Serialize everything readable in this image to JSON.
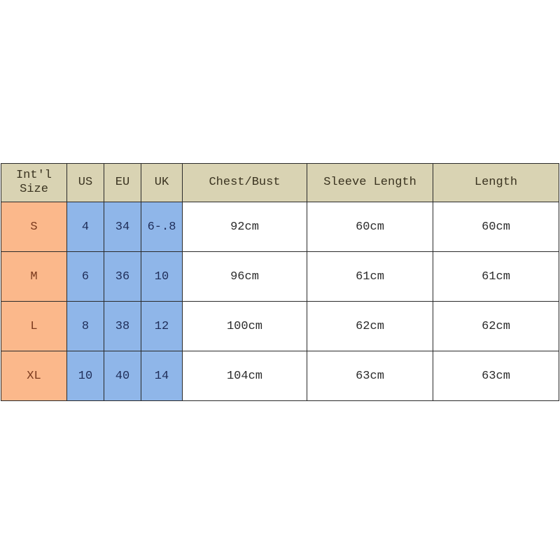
{
  "table": {
    "headers": [
      "Int'l Size",
      "US",
      "EU",
      "UK",
      "Chest/Bust",
      "Sleeve Length",
      "Length"
    ],
    "rows": [
      [
        "S",
        "4",
        "34",
        "6-.8",
        "92cm",
        "60cm",
        "60cm"
      ],
      [
        "M",
        "6",
        "36",
        "10",
        "96cm",
        "61cm",
        "61cm"
      ],
      [
        "L",
        "8",
        "38",
        "12",
        "100cm",
        "62cm",
        "62cm"
      ],
      [
        "XL",
        "10",
        "40",
        "14",
        "104cm",
        "63cm",
        "63cm"
      ]
    ]
  },
  "colors": {
    "header_bg": "#d9d3b3",
    "size_col_bg": "#fbb88b",
    "conversion_cols_bg": "#8fb6e9",
    "measurement_bg": "#ffffff"
  }
}
